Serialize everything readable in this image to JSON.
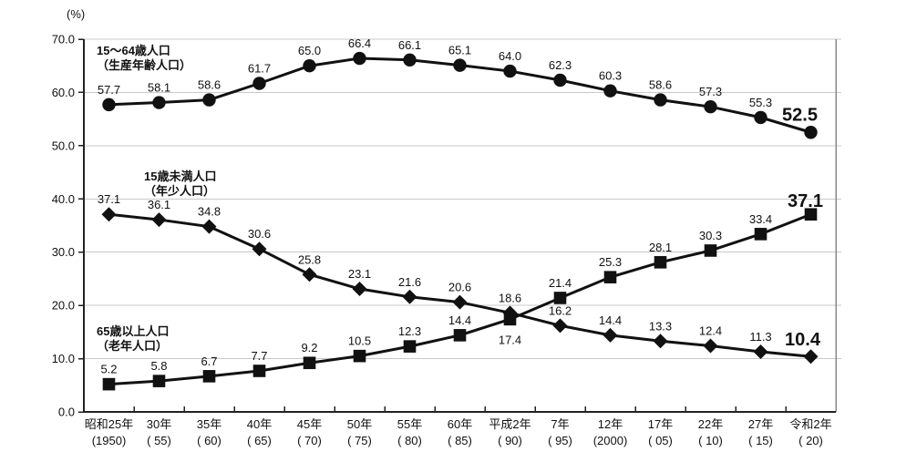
{
  "chart_data": {
    "type": "line",
    "title": "",
    "unit_label": "(%)",
    "ylabel": "",
    "xlabel": "",
    "ylim": [
      0,
      70
    ],
    "ytick_step": 10,
    "ytick_decimals": 1,
    "grid": true,
    "categories": [
      {
        "era": "昭和25年",
        "west": "(1950)"
      },
      {
        "era": "30年",
        "west": "( 55)"
      },
      {
        "era": "35年",
        "west": "( 60)"
      },
      {
        "era": "40年",
        "west": "( 65)"
      },
      {
        "era": "45年",
        "west": "( 70)"
      },
      {
        "era": "50年",
        "west": "( 75)"
      },
      {
        "era": "55年",
        "west": "( 80)"
      },
      {
        "era": "60年",
        "west": "( 85)"
      },
      {
        "era": "平成2年",
        "west": "( 90)"
      },
      {
        "era": "7年",
        "west": "( 95)"
      },
      {
        "era": "12年",
        "west": "(2000)"
      },
      {
        "era": "17年",
        "west": "( 05)"
      },
      {
        "era": "22年",
        "west": "( 10)"
      },
      {
        "era": "27年",
        "west": "( 15)"
      },
      {
        "era": "令和2年",
        "west": "( 20)"
      }
    ],
    "series": [
      {
        "id": "working_age",
        "name": "15～64歳人口（生産年齢人口）",
        "legend_lines": [
          "15～64歳人口",
          "（生産年齢人口）"
        ],
        "marker": "circle",
        "values": [
          57.7,
          58.1,
          58.6,
          61.7,
          65.0,
          66.4,
          66.1,
          65.1,
          64.0,
          62.3,
          60.3,
          58.6,
          57.3,
          55.3,
          52.5
        ]
      },
      {
        "id": "under_15",
        "name": "15歳未満人口（年少人口）",
        "legend_lines": [
          "15歳未満人口",
          "（年少人口）"
        ],
        "marker": "diamond",
        "values": [
          37.1,
          36.1,
          34.8,
          30.6,
          25.8,
          23.1,
          21.6,
          20.6,
          18.6,
          16.2,
          14.4,
          13.3,
          12.4,
          11.3,
          10.4
        ]
      },
      {
        "id": "over_65",
        "name": "65歳以上人口（老年人口）",
        "legend_lines": [
          "65歳以上人口",
          "（老年人口）"
        ],
        "marker": "square",
        "values": [
          5.2,
          5.8,
          6.7,
          7.7,
          9.2,
          10.5,
          12.3,
          14.4,
          17.4,
          21.4,
          25.3,
          28.1,
          30.3,
          33.4,
          37.1
        ]
      }
    ],
    "colors": {
      "line": "#111111",
      "marker": "#111111",
      "text": "#111111",
      "grid": "#c9c9c9",
      "axis": "#222222",
      "border": "#8a8a8a",
      "background": "#ffffff"
    },
    "legend_position": "inline-annotations"
  }
}
